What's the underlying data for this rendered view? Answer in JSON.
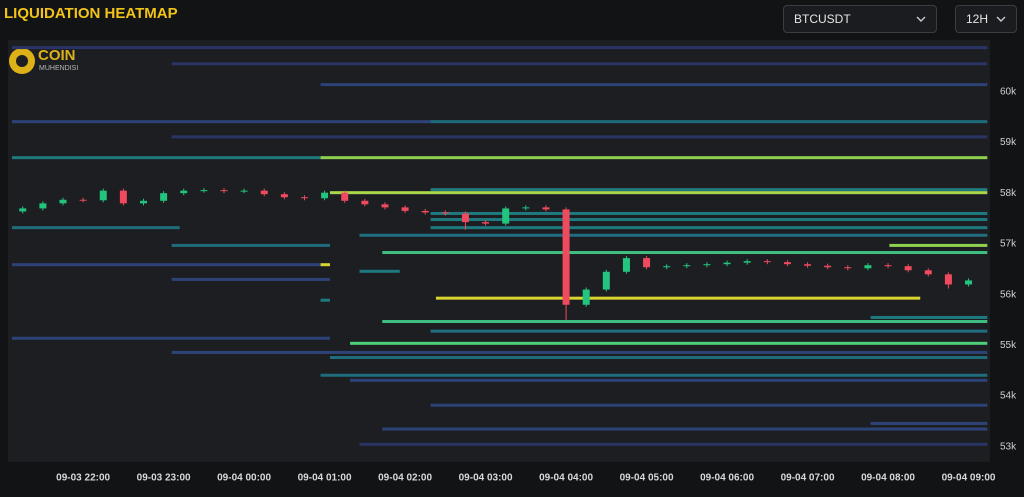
{
  "header": {
    "symbol": "BTCUSDT",
    "interval": "12H"
  },
  "logo": {
    "title": "COIN",
    "subtitle": "MUHENDISI"
  },
  "chart_data": {
    "type": "candlestick",
    "title": "LIQUIDATION HEATMAP",
    "xlim": [
      "09-03 21:04",
      "09-04 09:16"
    ],
    "xticks": [
      "09-03 22:00",
      "09-03 23:00",
      "09-04 00:00",
      "09-04 01:00",
      "09-04 02:00",
      "09-04 03:00",
      "09-04 04:00",
      "09-04 05:00",
      "09-04 06:00",
      "09-04 07:00",
      "09-04 08:00",
      "09-04 09:00"
    ],
    "ylim": [
      52700,
      61020
    ],
    "yticks": [
      {
        "value": 53000,
        "label": "53k"
      },
      {
        "value": 54000,
        "label": "54k"
      },
      {
        "value": 55000,
        "label": "55k"
      },
      {
        "value": 56000,
        "label": "56k"
      },
      {
        "value": 57000,
        "label": "57k"
      },
      {
        "value": 58000,
        "label": "58k"
      },
      {
        "value": 59000,
        "label": "59k"
      },
      {
        "value": 60000,
        "label": "60k"
      }
    ],
    "grid": false,
    "up_color": "#22c47e",
    "down_color": "#ef4a5e",
    "x": [
      "09-03 21:15",
      "09-03 21:30",
      "09-03 21:45",
      "09-03 22:00",
      "09-03 22:15",
      "09-03 22:30",
      "09-03 22:45",
      "09-03 23:00",
      "09-03 23:15",
      "09-03 23:30",
      "09-03 23:45",
      "09-04 00:00",
      "09-04 00:15",
      "09-04 00:30",
      "09-04 00:45",
      "09-04 01:00",
      "09-04 01:15",
      "09-04 01:30",
      "09-04 01:45",
      "09-04 02:00",
      "09-04 02:15",
      "09-04 02:30",
      "09-04 02:45",
      "09-04 03:00",
      "09-04 03:15",
      "09-04 03:30",
      "09-04 03:45",
      "09-04 04:00",
      "09-04 04:15",
      "09-04 04:30",
      "09-04 04:45",
      "09-04 05:00",
      "09-04 05:15",
      "09-04 05:30",
      "09-04 05:45",
      "09-04 06:00",
      "09-04 06:15",
      "09-04 06:30",
      "09-04 06:45",
      "09-04 07:00",
      "09-04 07:15",
      "09-04 07:30",
      "09-04 07:45",
      "09-04 08:00",
      "09-04 08:15",
      "09-04 08:30",
      "09-04 08:45",
      "09-04 09:00"
    ],
    "open": [
      57640,
      57700,
      57800,
      57870,
      57860,
      58050,
      57800,
      57850,
      58000,
      58050,
      58060,
      58040,
      58050,
      57980,
      57920,
      57900,
      58010,
      57850,
      57780,
      57720,
      57650,
      57620,
      57600,
      57430,
      57400,
      57700,
      57720,
      57680,
      55800,
      56100,
      56450,
      56720,
      56540,
      56560,
      56580,
      56600,
      56630,
      56660,
      56640,
      56600,
      56570,
      56540,
      56520,
      56580,
      56560,
      56480,
      56400,
      56200
    ],
    "high": [
      57740,
      57840,
      57910,
      57910,
      58090,
      58090,
      57890,
      58040,
      58090,
      58100,
      58100,
      58090,
      58090,
      58020,
      57960,
      58050,
      58050,
      57890,
      57820,
      57760,
      57690,
      57660,
      57640,
      57470,
      57740,
      57760,
      57760,
      57720,
      56140,
      56490,
      56760,
      56760,
      56600,
      56620,
      56640,
      56670,
      56700,
      56700,
      56680,
      56640,
      56610,
      56580,
      56620,
      56620,
      56600,
      56520,
      56440,
      56320
    ],
    "low": [
      57600,
      57660,
      57760,
      57820,
      57820,
      57760,
      57760,
      57810,
      57960,
      58010,
      58000,
      58000,
      57940,
      57880,
      57860,
      57860,
      57810,
      57740,
      57680,
      57610,
      57580,
      57560,
      57280,
      57360,
      57360,
      57660,
      57640,
      55500,
      55760,
      56060,
      56410,
      56500,
      56500,
      56520,
      56540,
      56560,
      56590,
      56600,
      56560,
      56530,
      56500,
      56480,
      56480,
      56520,
      56440,
      56360,
      56120,
      56160
    ],
    "close": [
      57700,
      57800,
      57870,
      57860,
      58050,
      57800,
      57850,
      58000,
      58050,
      58060,
      58040,
      58050,
      57980,
      57920,
      57900,
      58010,
      57850,
      57780,
      57720,
      57650,
      57620,
      57600,
      57430,
      57400,
      57700,
      57720,
      57680,
      55800,
      56100,
      56450,
      56720,
      56540,
      56560,
      56580,
      56600,
      56630,
      56660,
      56640,
      56600,
      56570,
      56540,
      56520,
      56580,
      56560,
      56480,
      56400,
      56200,
      56280
    ],
    "bands": [
      {
        "price": 60870,
        "start": "09-03 21:07",
        "end": "09-04 09:14",
        "color": "#2a3566"
      },
      {
        "price": 60550,
        "start": "09-03 23:06",
        "end": "09-04 09:14",
        "color": "#2a3566"
      },
      {
        "price": 60140,
        "start": "09-04 00:57",
        "end": "09-04 09:14",
        "color": "#2d4378"
      },
      {
        "price": 59410,
        "start": "09-03 21:07",
        "end": "09-04 02:19",
        "color": "#2d4378"
      },
      {
        "price": 59410,
        "start": "09-04 02:19",
        "end": "09-04 09:14",
        "color": "#1f6d7c"
      },
      {
        "price": 59110,
        "start": "09-03 23:06",
        "end": "09-04 09:14",
        "color": "#2a3566"
      },
      {
        "price": 58700,
        "start": "09-03 21:07",
        "end": "09-04 00:57",
        "color": "#1f7a80"
      },
      {
        "price": 58700,
        "start": "09-04 00:57",
        "end": "09-04 09:14",
        "color": "#8fd14f"
      },
      {
        "price": 58070,
        "start": "09-04 02:19",
        "end": "09-04 09:14",
        "color": "#1f7a80"
      },
      {
        "price": 58010,
        "start": "09-04 01:04",
        "end": "09-04 09:14",
        "color": "#a8d84a"
      },
      {
        "price": 57600,
        "start": "09-04 02:19",
        "end": "09-04 09:14",
        "color": "#1f7a80"
      },
      {
        "price": 57480,
        "start": "09-04 02:19",
        "end": "09-04 09:14",
        "color": "#1f7a80"
      },
      {
        "price": 57320,
        "start": "09-03 21:07",
        "end": "09-03 23:12",
        "color": "#1f6d7c"
      },
      {
        "price": 57320,
        "start": "09-04 02:19",
        "end": "09-04 09:14",
        "color": "#1f7a80"
      },
      {
        "price": 57170,
        "start": "09-04 01:26",
        "end": "09-04 09:14",
        "color": "#236d80"
      },
      {
        "price": 56970,
        "start": "09-03 23:06",
        "end": "09-04 01:04",
        "color": "#1f6d7c"
      },
      {
        "price": 56970,
        "start": "09-04 08:01",
        "end": "09-04 09:14",
        "color": "#8fd14f"
      },
      {
        "price": 56830,
        "start": "09-04 01:43",
        "end": "09-04 09:14",
        "color": "#3fbf7f"
      },
      {
        "price": 56590,
        "start": "09-03 21:07",
        "end": "09-04 00:57",
        "color": "#2d4378"
      },
      {
        "price": 56590,
        "start": "09-04 00:57",
        "end": "09-04 01:04",
        "color": "#d9d52e"
      },
      {
        "price": 56460,
        "start": "09-04 01:26",
        "end": "09-04 01:56",
        "color": "#1f7a80"
      },
      {
        "price": 56300,
        "start": "09-03 23:06",
        "end": "09-04 01:04",
        "color": "#2d4378"
      },
      {
        "price": 55930,
        "start": "09-04 02:23",
        "end": "09-04 08:24",
        "color": "#d9d52e"
      },
      {
        "price": 55890,
        "start": "09-04 00:57",
        "end": "09-04 01:04",
        "color": "#1f7a80"
      },
      {
        "price": 55550,
        "start": "09-04 07:47",
        "end": "09-04 09:14",
        "color": "#1f7a80"
      },
      {
        "price": 55470,
        "start": "09-04 01:43",
        "end": "09-04 09:14",
        "color": "#3fbf7f"
      },
      {
        "price": 55280,
        "start": "09-04 02:19",
        "end": "09-04 09:14",
        "color": "#236d80"
      },
      {
        "price": 55140,
        "start": "09-03 21:07",
        "end": "09-04 01:04",
        "color": "#2d4378"
      },
      {
        "price": 55040,
        "start": "09-04 01:19",
        "end": "09-04 09:14",
        "color": "#4fcf7a"
      },
      {
        "price": 54860,
        "start": "09-03 23:06",
        "end": "09-04 09:14",
        "color": "#2d4378"
      },
      {
        "price": 54760,
        "start": "09-04 01:04",
        "end": "09-04 09:14",
        "color": "#1f6d7c"
      },
      {
        "price": 54410,
        "start": "09-04 00:57",
        "end": "09-04 09:14",
        "color": "#1f6d7c"
      },
      {
        "price": 54310,
        "start": "09-04 01:19",
        "end": "09-04 09:14",
        "color": "#2d4378"
      },
      {
        "price": 53820,
        "start": "09-04 02:19",
        "end": "09-04 09:14",
        "color": "#2d4378"
      },
      {
        "price": 53460,
        "start": "09-04 07:47",
        "end": "09-04 09:14",
        "color": "#2d4378"
      },
      {
        "price": 53350,
        "start": "09-04 01:43",
        "end": "09-04 09:14",
        "color": "#2d4378"
      },
      {
        "price": 53050,
        "start": "09-04 01:26",
        "end": "09-04 09:14",
        "color": "#2a3566"
      }
    ]
  }
}
